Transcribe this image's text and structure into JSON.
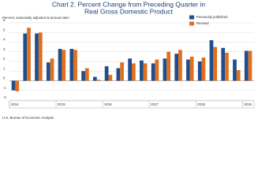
{
  "chart_data": {
    "type": "bar",
    "title": "Chart 2. Percent Change from Preceding Quarter in",
    "subtitle_line": "Real Gross Domestic Product",
    "y_label": "Percent, seasonally adjusted at annual rates",
    "source": "U.S. Bureau of Economic Analysis",
    "categories": [
      "2014",
      null,
      null,
      null,
      "2015",
      null,
      null,
      null,
      "2016",
      null,
      null,
      null,
      "2017",
      null,
      null,
      null,
      "2018",
      null,
      null,
      null,
      "2019"
    ],
    "series": [
      {
        "name": "Previously published",
        "color": "#1f4e8c",
        "values": [
          -1.0,
          4.9,
          4.9,
          1.9,
          3.3,
          3.3,
          1.0,
          0.4,
          1.5,
          1.3,
          2.3,
          2.1,
          1.8,
          2.3,
          2.8,
          2.2,
          2.0,
          4.2,
          3.4,
          2.2,
          3.1
        ]
      },
      {
        "name": "Revised",
        "color": "#e0701e",
        "values": [
          -1.1,
          5.5,
          5.0,
          2.3,
          3.2,
          3.2,
          1.3,
          0.1,
          0.6,
          1.9,
          1.8,
          1.8,
          2.2,
          3.0,
          3.2,
          2.5,
          2.4,
          3.5,
          2.9,
          1.1,
          3.1
        ]
      }
    ],
    "ylim": [
      -2,
      6
    ],
    "yticks": [
      -2,
      -1,
      0,
      1,
      2,
      3,
      4,
      5,
      6
    ],
    "grid": true,
    "legend": "upper-right"
  }
}
